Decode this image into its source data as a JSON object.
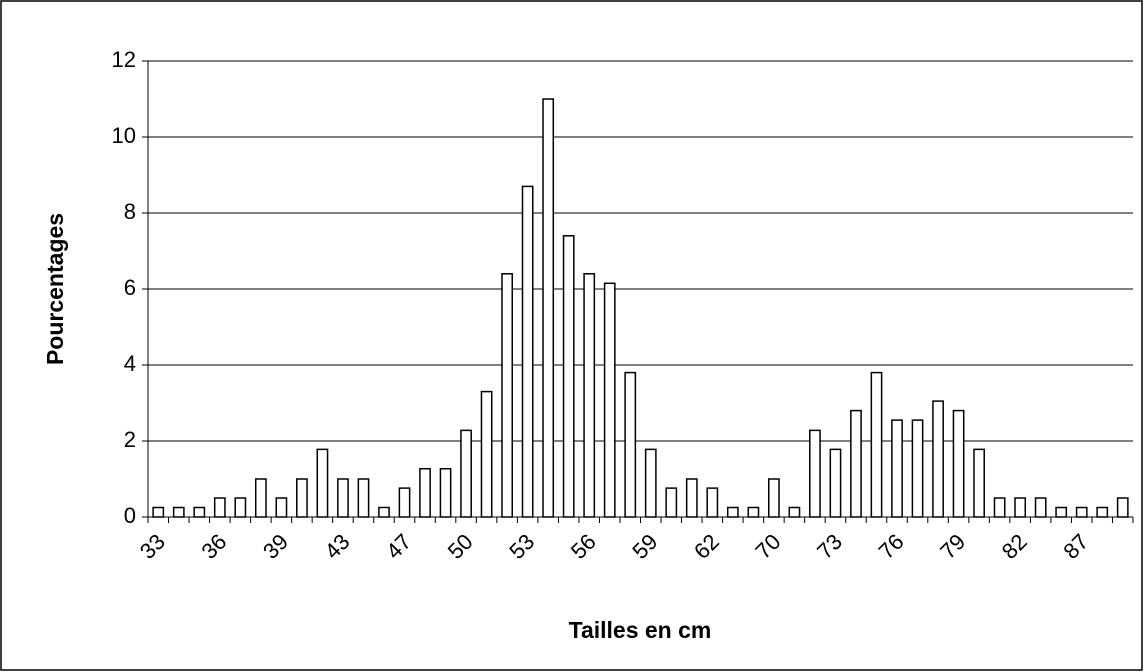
{
  "chart_data": {
    "type": "bar",
    "xlabel": "Tailles en cm",
    "ylabel": "Pourcentages",
    "categories": [
      "33",
      null,
      null,
      "36",
      null,
      null,
      "39",
      null,
      null,
      "43",
      null,
      null,
      "47",
      null,
      null,
      "50",
      null,
      null,
      "53",
      null,
      null,
      "56",
      null,
      null,
      "59",
      null,
      null,
      "62",
      null,
      null,
      "70",
      null,
      null,
      "73",
      null,
      null,
      "76",
      null,
      null,
      "79",
      null,
      null,
      "82",
      null,
      null,
      "87",
      null,
      null
    ],
    "values": [
      0.25,
      0.25,
      0.25,
      0.5,
      0.5,
      1.0,
      0.5,
      1.0,
      1.78,
      1.0,
      1.0,
      0.25,
      0.76,
      1.27,
      1.27,
      2.28,
      3.3,
      6.4,
      8.7,
      11.0,
      7.4,
      6.4,
      6.15,
      3.8,
      1.78,
      0.76,
      1.0,
      0.76,
      0.25,
      0.25,
      1.0,
      0.25,
      2.28,
      1.78,
      2.8,
      3.8,
      2.55,
      2.55,
      3.05,
      2.8,
      1.78,
      0.5,
      0.5,
      0.5,
      0.25,
      0.25,
      0.25,
      0.5
    ],
    "color": "#ffffff",
    "ylim": [
      0,
      12
    ],
    "yticks": [
      0,
      2,
      4,
      6,
      8,
      10,
      12
    ],
    "grid": true
  }
}
